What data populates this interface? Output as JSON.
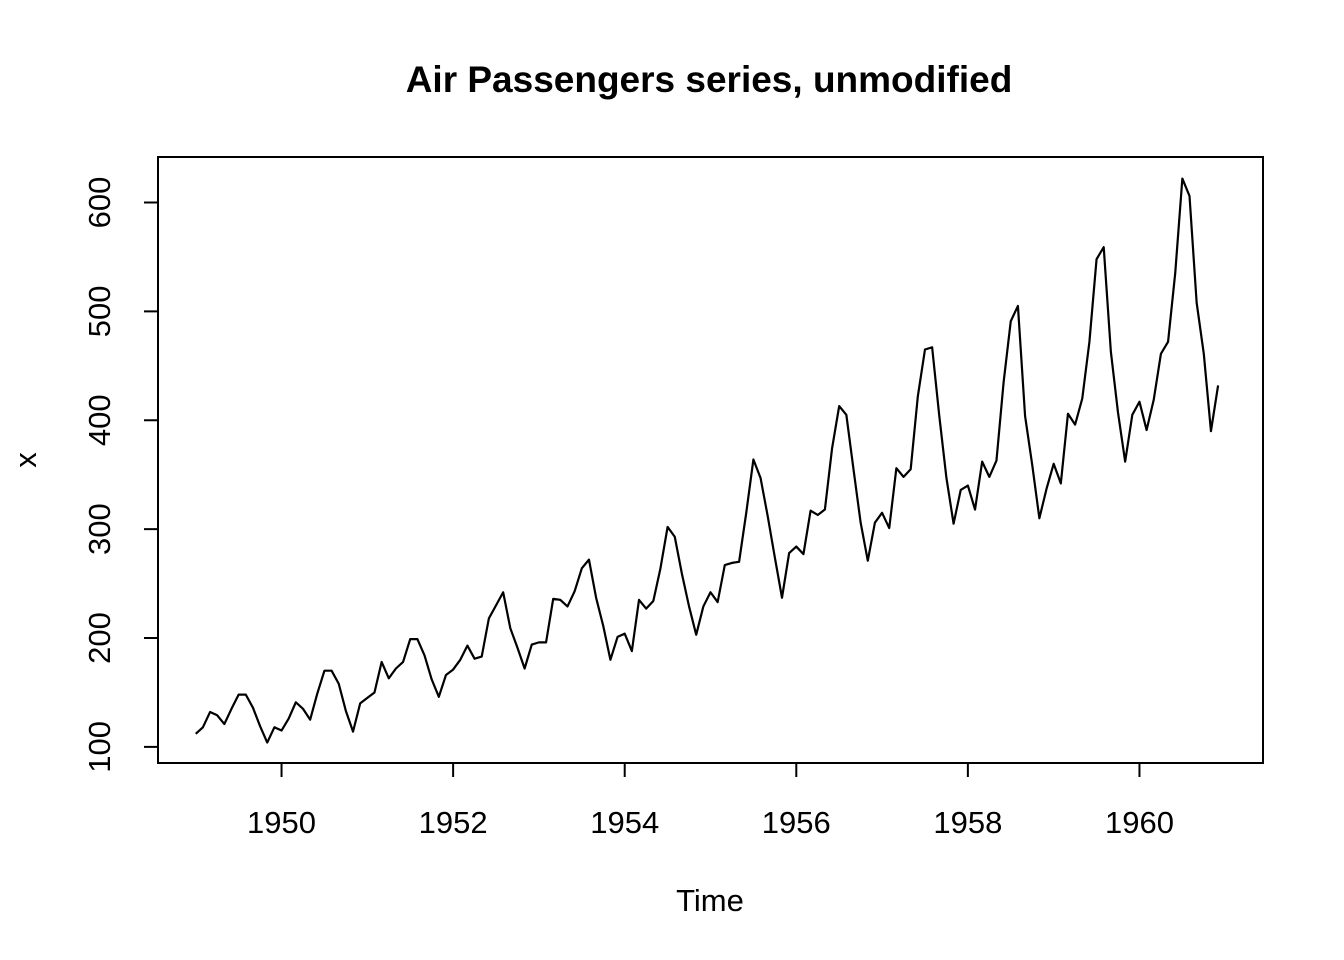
{
  "chart_data": {
    "type": "line",
    "title": "Air Passengers series, unmodified",
    "xlabel": "Time",
    "ylabel": "x",
    "xlim": [
      1948.56,
      1961.44
    ],
    "ylim": [
      85.2,
      641.8
    ],
    "x_ticks": [
      1950,
      1952,
      1954,
      1956,
      1958,
      1960
    ],
    "x_tick_labels": [
      "1950",
      "1952",
      "1954",
      "1956",
      "1958",
      "1960"
    ],
    "y_ticks": [
      100,
      200,
      300,
      400,
      500,
      600
    ],
    "y_tick_labels": [
      "100",
      "200",
      "300",
      "400",
      "500",
      "600"
    ],
    "grid": false,
    "legend": "none",
    "line_color": "#000000",
    "series": [
      {
        "x_start": 1949.0,
        "x_step": 0.08333333333333333,
        "values": [
          112,
          118,
          132,
          129,
          121,
          135,
          148,
          148,
          136,
          119,
          104,
          118,
          115,
          126,
          141,
          135,
          125,
          149,
          170,
          170,
          158,
          133,
          114,
          140,
          145,
          150,
          178,
          163,
          172,
          178,
          199,
          199,
          184,
          162,
          146,
          166,
          171,
          180,
          193,
          181,
          183,
          218,
          230,
          242,
          209,
          191,
          172,
          194,
          196,
          196,
          236,
          235,
          229,
          243,
          264,
          272,
          237,
          211,
          180,
          201,
          204,
          188,
          235,
          227,
          234,
          264,
          302,
          293,
          259,
          229,
          203,
          229,
          242,
          233,
          267,
          269,
          270,
          315,
          364,
          347,
          312,
          274,
          237,
          278,
          284,
          277,
          317,
          313,
          318,
          374,
          413,
          405,
          355,
          306,
          271,
          306,
          315,
          301,
          356,
          348,
          355,
          422,
          465,
          467,
          404,
          347,
          305,
          336,
          340,
          318,
          362,
          348,
          363,
          435,
          491,
          505,
          404,
          359,
          310,
          337,
          360,
          342,
          406,
          396,
          420,
          472,
          548,
          559,
          463,
          407,
          362,
          405,
          417,
          391,
          419,
          461,
          472,
          535,
          622,
          606,
          508,
          461,
          390,
          432
        ]
      }
    ]
  }
}
